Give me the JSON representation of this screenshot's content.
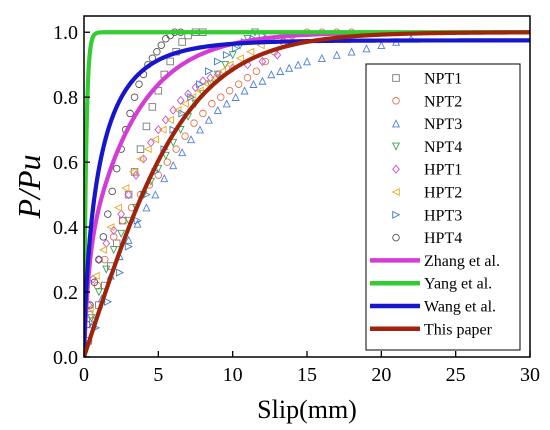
{
  "chart_data": {
    "type": "scatter",
    "xlabel": "Slip(mm)",
    "ylabel": "P/Pu",
    "xlim": [
      0,
      30
    ],
    "ylim": [
      0,
      1.05
    ],
    "xticks": [
      0,
      5,
      10,
      15,
      20,
      25,
      30
    ],
    "yticks": [
      0.0,
      0.2,
      0.4,
      0.6,
      0.8,
      1.0
    ],
    "xtick_labels": [
      "0",
      "5",
      "10",
      "15",
      "20",
      "25",
      "30"
    ],
    "ytick_labels": [
      "0.0",
      "0.2",
      "0.4",
      "0.6",
      "0.8",
      "1.0"
    ],
    "grid": false,
    "legend_position": "right",
    "series": [
      {
        "name": "NPT1",
        "kind": "scatter",
        "marker": "square",
        "color": "#7a7a7a",
        "points": [
          [
            0.3,
            0.05
          ],
          [
            0.6,
            0.11
          ],
          [
            1,
            0.16
          ],
          [
            1.4,
            0.22
          ],
          [
            1.8,
            0.28
          ],
          [
            2.2,
            0.35
          ],
          [
            2.6,
            0.42
          ],
          [
            3,
            0.5
          ],
          [
            3.4,
            0.57
          ],
          [
            3.8,
            0.64
          ],
          [
            4.2,
            0.71
          ],
          [
            4.6,
            0.77
          ],
          [
            5,
            0.82
          ],
          [
            5.4,
            0.87
          ],
          [
            5.8,
            0.91
          ],
          [
            6.2,
            0.94
          ],
          [
            6.6,
            0.97
          ],
          [
            7,
            0.99
          ],
          [
            7.5,
            1.0
          ],
          [
            8,
            1.0
          ]
        ]
      },
      {
        "name": "NPT2",
        "kind": "scatter",
        "marker": "circle",
        "color": "#e0734e",
        "points": [
          [
            0.4,
            0.13
          ],
          [
            0.9,
            0.22
          ],
          [
            1.4,
            0.3
          ],
          [
            2,
            0.37
          ],
          [
            2.6,
            0.42
          ],
          [
            3.2,
            0.46
          ],
          [
            3.8,
            0.5
          ],
          [
            4.4,
            0.53
          ],
          [
            5,
            0.56
          ],
          [
            5.6,
            0.6
          ],
          [
            6.2,
            0.64
          ],
          [
            6.8,
            0.68
          ],
          [
            7.4,
            0.72
          ],
          [
            8,
            0.75
          ],
          [
            8.6,
            0.78
          ],
          [
            9.2,
            0.8
          ],
          [
            9.8,
            0.82
          ],
          [
            10.4,
            0.84
          ],
          [
            11,
            0.86
          ],
          [
            11.6,
            0.88
          ],
          [
            12.2,
            0.91
          ],
          [
            12.8,
            0.94
          ],
          [
            13.4,
            0.97
          ],
          [
            14,
            0.99
          ],
          [
            15,
            1.0
          ],
          [
            16,
            1.0
          ],
          [
            17,
            1.0
          ],
          [
            18,
            1.0
          ]
        ]
      },
      {
        "name": "NPT3",
        "kind": "scatter",
        "marker": "triangle-up",
        "color": "#4f7fe0",
        "points": [
          [
            0.6,
            0.1
          ],
          [
            1.2,
            0.18
          ],
          [
            1.8,
            0.25
          ],
          [
            2.4,
            0.31
          ],
          [
            3,
            0.36
          ],
          [
            3.6,
            0.41
          ],
          [
            4.2,
            0.46
          ],
          [
            4.8,
            0.5
          ],
          [
            5.4,
            0.55
          ],
          [
            6,
            0.59
          ],
          [
            6.6,
            0.63
          ],
          [
            7.2,
            0.67
          ],
          [
            7.8,
            0.7
          ],
          [
            8.4,
            0.73
          ],
          [
            9,
            0.76
          ],
          [
            9.6,
            0.78
          ],
          [
            10.2,
            0.8
          ],
          [
            10.8,
            0.82
          ],
          [
            11.4,
            0.84
          ],
          [
            12,
            0.85
          ],
          [
            12.6,
            0.87
          ],
          [
            13.2,
            0.88
          ],
          [
            13.8,
            0.89
          ],
          [
            14.4,
            0.9
          ],
          [
            15,
            0.91
          ],
          [
            16,
            0.92
          ],
          [
            17,
            0.93
          ],
          [
            18,
            0.94
          ],
          [
            19,
            0.95
          ],
          [
            20,
            0.96
          ],
          [
            21,
            0.97
          ],
          [
            22,
            0.98
          ]
        ]
      },
      {
        "name": "NPT4",
        "kind": "scatter",
        "marker": "triangle-down",
        "color": "#3aa35a",
        "points": [
          [
            0.5,
            0.12
          ],
          [
            1,
            0.2
          ],
          [
            1.5,
            0.27
          ],
          [
            2,
            0.33
          ],
          [
            2.5,
            0.38
          ],
          [
            3,
            0.42
          ],
          [
            3.5,
            0.46
          ],
          [
            4,
            0.5
          ],
          [
            4.5,
            0.54
          ],
          [
            5,
            0.58
          ],
          [
            5.5,
            0.62
          ],
          [
            6,
            0.66
          ],
          [
            6.5,
            0.7
          ],
          [
            7,
            0.74
          ],
          [
            7.5,
            0.78
          ],
          [
            8,
            0.81
          ],
          [
            8.5,
            0.84
          ],
          [
            9,
            0.87
          ],
          [
            9.5,
            0.9
          ],
          [
            10,
            0.93
          ],
          [
            10.5,
            0.96
          ],
          [
            11,
            0.98
          ],
          [
            11.5,
            1.0
          ]
        ]
      },
      {
        "name": "HPT1",
        "kind": "scatter",
        "marker": "diamond",
        "color": "#cf4fd3",
        "points": [
          [
            0.3,
            0.16
          ],
          [
            0.6,
            0.24
          ],
          [
            1,
            0.3
          ],
          [
            1.5,
            0.35
          ],
          [
            2,
            0.39
          ],
          [
            2.5,
            0.44
          ],
          [
            3,
            0.5
          ],
          [
            3.5,
            0.56
          ],
          [
            4,
            0.61
          ],
          [
            4.5,
            0.66
          ],
          [
            5,
            0.7
          ],
          [
            5.5,
            0.73
          ],
          [
            6,
            0.76
          ],
          [
            6.5,
            0.79
          ],
          [
            7,
            0.81
          ],
          [
            7.5,
            0.83
          ],
          [
            8,
            0.85
          ],
          [
            8.5,
            0.86
          ],
          [
            9,
            0.87
          ],
          [
            10,
            0.89
          ],
          [
            11,
            0.9
          ],
          [
            12,
            0.91
          ],
          [
            13,
            0.93
          ]
        ]
      },
      {
        "name": "HPT2",
        "kind": "scatter",
        "marker": "triangle-left",
        "color": "#e6a81f",
        "points": [
          [
            0.4,
            0.15
          ],
          [
            0.8,
            0.25
          ],
          [
            1.3,
            0.33
          ],
          [
            1.8,
            0.4
          ],
          [
            2.3,
            0.46
          ],
          [
            2.8,
            0.52
          ],
          [
            3.3,
            0.57
          ],
          [
            3.8,
            0.61
          ],
          [
            4.3,
            0.64
          ],
          [
            4.8,
            0.67
          ],
          [
            5.3,
            0.7
          ],
          [
            5.8,
            0.73
          ],
          [
            6.3,
            0.76
          ],
          [
            6.8,
            0.78
          ],
          [
            7.3,
            0.8
          ],
          [
            7.8,
            0.82
          ],
          [
            8.3,
            0.84
          ],
          [
            8.8,
            0.86
          ],
          [
            9.3,
            0.88
          ],
          [
            9.8,
            0.9
          ],
          [
            10.5,
            0.92
          ],
          [
            11.2,
            0.94
          ],
          [
            11.9,
            0.96
          ],
          [
            12.6,
            0.98
          ],
          [
            13.3,
            0.99
          ]
        ]
      },
      {
        "name": "HPT3",
        "kind": "scatter",
        "marker": "triangle-right",
        "color": "#3f7cc4",
        "points": [
          [
            0.8,
            0.09
          ],
          [
            1.6,
            0.17
          ],
          [
            2.4,
            0.26
          ],
          [
            3,
            0.34
          ],
          [
            3.6,
            0.42
          ],
          [
            4.2,
            0.5
          ],
          [
            4.8,
            0.57
          ],
          [
            5.4,
            0.64
          ],
          [
            6,
            0.7
          ],
          [
            6.6,
            0.75
          ],
          [
            7.2,
            0.8
          ],
          [
            7.8,
            0.84
          ],
          [
            8.4,
            0.88
          ],
          [
            9,
            0.91
          ],
          [
            9.6,
            0.93
          ],
          [
            10.2,
            0.95
          ],
          [
            10.8,
            0.97
          ],
          [
            11.4,
            0.98
          ],
          [
            12,
            0.99
          ]
        ]
      },
      {
        "name": "HPT4",
        "kind": "scatter",
        "marker": "circle",
        "color": "#555555",
        "points": [
          [
            0.2,
            0.1
          ],
          [
            0.4,
            0.16
          ],
          [
            0.7,
            0.23
          ],
          [
            1,
            0.3
          ],
          [
            1.3,
            0.37
          ],
          [
            1.6,
            0.44
          ],
          [
            1.9,
            0.51
          ],
          [
            2.2,
            0.58
          ],
          [
            2.5,
            0.64
          ],
          [
            2.8,
            0.7
          ],
          [
            3.1,
            0.75
          ],
          [
            3.4,
            0.8
          ],
          [
            3.7,
            0.84
          ],
          [
            4,
            0.87
          ],
          [
            4.3,
            0.9
          ],
          [
            4.6,
            0.92
          ],
          [
            4.9,
            0.94
          ],
          [
            5.2,
            0.96
          ],
          [
            5.5,
            0.98
          ],
          [
            5.8,
            0.99
          ],
          [
            6.1,
            1.0
          ],
          [
            6.5,
            1.0
          ]
        ]
      },
      {
        "name": "Zhang et al.",
        "kind": "line",
        "color": "#d43cd7",
        "model": "zhang"
      },
      {
        "name": "Yang et al.",
        "kind": "line",
        "color": "#33cc33",
        "model": "yang"
      },
      {
        "name": "Wang et al.",
        "kind": "line",
        "color": "#1616cc",
        "model": "wang"
      },
      {
        "name": "This paper",
        "kind": "line",
        "color": "#a0240c",
        "model": "thispaper"
      }
    ]
  }
}
